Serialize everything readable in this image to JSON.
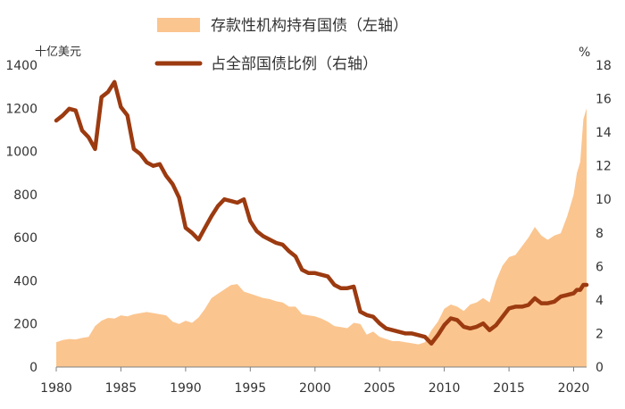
{
  "chart_data": {
    "type": "area+line",
    "left_axis_unit": "十亿美元",
    "right_axis_unit": "%",
    "left_ylim": [
      0,
      1400
    ],
    "right_ylim": [
      0,
      18
    ],
    "xlim": [
      1980,
      2021
    ],
    "left_ticks": [
      "0",
      "200",
      "400",
      "600",
      "800",
      "1000",
      "1200",
      "1400"
    ],
    "right_ticks": [
      "0",
      "2",
      "4",
      "6",
      "8",
      "10",
      "12",
      "14",
      "16",
      "18"
    ],
    "x_ticks": [
      "1980",
      "1985",
      "1990",
      "1995",
      "2000",
      "2005",
      "2010",
      "2015",
      "2020"
    ],
    "legend_position": "top-center",
    "grid": false,
    "series": [
      {
        "name": "存款性机构持有国债（左轴）",
        "axis": "left",
        "kind": "area",
        "color": "#FBC58F",
        "x": [
          1980,
          1980.5,
          1981,
          1981.5,
          1982,
          1982.5,
          1983,
          1983.5,
          1984,
          1984.5,
          1985,
          1985.5,
          1986,
          1986.5,
          1987,
          1987.5,
          1988,
          1988.5,
          1989,
          1989.5,
          1990,
          1990.5,
          1991,
          1991.5,
          1992,
          1992.5,
          1993,
          1993.5,
          1994,
          1994.5,
          1995,
          1995.5,
          1996,
          1996.5,
          1997,
          1997.5,
          1998,
          1998.5,
          1999,
          1999.5,
          2000,
          2000.5,
          2001,
          2001.5,
          2002,
          2002.5,
          2003,
          2003.5,
          2004,
          2004.5,
          2005,
          2005.5,
          2006,
          2006.5,
          2007,
          2007.5,
          2008,
          2008.5,
          2009,
          2009.5,
          2010,
          2010.5,
          2011,
          2011.5,
          2012,
          2012.5,
          2013,
          2013.5,
          2014,
          2014.5,
          2015,
          2015.5,
          2016,
          2016.5,
          2017,
          2017.5,
          2018,
          2018.5,
          2019,
          2019.5,
          2020,
          2020.25,
          2020.5,
          2020.75,
          2021
        ],
        "values": [
          115,
          125,
          130,
          128,
          135,
          140,
          190,
          215,
          228,
          225,
          240,
          235,
          245,
          250,
          255,
          250,
          245,
          240,
          210,
          200,
          215,
          205,
          230,
          270,
          320,
          340,
          360,
          380,
          385,
          350,
          340,
          330,
          320,
          315,
          305,
          300,
          280,
          280,
          245,
          240,
          235,
          225,
          210,
          190,
          185,
          180,
          205,
          200,
          150,
          165,
          140,
          130,
          120,
          120,
          115,
          110,
          105,
          115,
          170,
          210,
          270,
          290,
          280,
          260,
          290,
          300,
          320,
          300,
          400,
          470,
          510,
          520,
          560,
          600,
          650,
          610,
          590,
          610,
          620,
          700,
          800,
          900,
          950,
          1150,
          1200
        ]
      },
      {
        "name": "占全部国债比例（右轴）",
        "axis": "right",
        "kind": "line",
        "color": "#9C3A10",
        "x": [
          1980,
          1980.5,
          1981,
          1981.5,
          1982,
          1982.5,
          1983,
          1983.5,
          1984,
          1984.5,
          1985,
          1985.5,
          1986,
          1986.5,
          1987,
          1987.5,
          1988,
          1988.5,
          1989,
          1989.5,
          1990,
          1990.5,
          1991,
          1991.5,
          1992,
          1992.5,
          1993,
          1993.5,
          1994,
          1994.5,
          1995,
          1995.5,
          1996,
          1996.5,
          1997,
          1997.5,
          1998,
          1998.5,
          1999,
          1999.5,
          2000,
          2000.5,
          2001,
          2001.5,
          2002,
          2002.5,
          2003,
          2003.5,
          2004,
          2004.5,
          2005,
          2005.5,
          2006,
          2006.5,
          2007,
          2007.5,
          2008,
          2008.5,
          2009,
          2009.5,
          2010,
          2010.5,
          2011,
          2011.5,
          2012,
          2012.5,
          2013,
          2013.5,
          2014,
          2014.5,
          2015,
          2015.5,
          2016,
          2016.5,
          2017,
          2017.5,
          2018,
          2018.5,
          2019,
          2019.5,
          2020,
          2020.25,
          2020.5,
          2020.75,
          2021
        ],
        "values": [
          14.7,
          15.0,
          15.4,
          15.3,
          14.1,
          13.7,
          13.0,
          16.1,
          16.4,
          17.0,
          15.5,
          15.0,
          13.0,
          12.7,
          12.2,
          12.0,
          12.1,
          11.4,
          10.9,
          10.1,
          8.3,
          8.0,
          7.6,
          8.3,
          9.0,
          9.6,
          10.0,
          9.9,
          9.8,
          10.0,
          8.7,
          8.1,
          7.8,
          7.6,
          7.4,
          7.3,
          6.9,
          6.6,
          5.8,
          5.6,
          5.6,
          5.5,
          5.4,
          4.9,
          4.7,
          4.7,
          4.8,
          3.3,
          3.1,
          3.0,
          2.6,
          2.3,
          2.2,
          2.1,
          2.0,
          2.0,
          1.9,
          1.8,
          1.4,
          1.9,
          2.5,
          2.9,
          2.8,
          2.4,
          2.3,
          2.4,
          2.6,
          2.2,
          2.5,
          3.0,
          3.5,
          3.6,
          3.6,
          3.7,
          4.1,
          3.8,
          3.8,
          3.9,
          4.2,
          4.3,
          4.4,
          4.6,
          4.6,
          4.9,
          4.9
        ]
      }
    ]
  }
}
